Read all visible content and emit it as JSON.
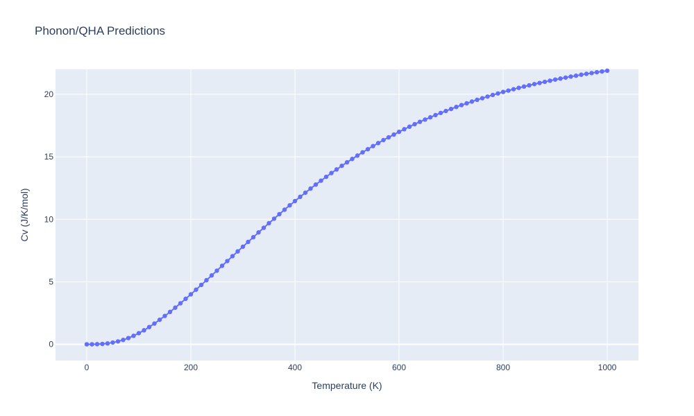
{
  "chart_data": {
    "type": "line",
    "mode": "lines+markers",
    "title": "Phonon/QHA Predictions",
    "xlabel": "Temperature (K)",
    "ylabel": "Cv (J/K/mol)",
    "xlim": [
      -60,
      1060
    ],
    "ylim": [
      -1.3,
      22
    ],
    "xticks": [
      0,
      200,
      400,
      600,
      800,
      1000
    ],
    "yticks": [
      0,
      5,
      10,
      15,
      20
    ],
    "grid": true,
    "legend": "none",
    "colors": {
      "series": "#636efa",
      "plot_bg": "#e5ecf6",
      "grid": "#ffffff",
      "text": "#2a3f5f"
    },
    "series": [
      {
        "x": [
          0,
          10,
          20,
          30,
          40,
          50,
          60,
          70,
          80,
          90,
          100,
          110,
          120,
          130,
          140,
          150,
          160,
          170,
          180,
          190,
          200,
          210,
          220,
          230,
          240,
          250,
          260,
          270,
          280,
          290,
          300,
          310,
          320,
          330,
          340,
          350,
          360,
          370,
          380,
          390,
          400,
          410,
          420,
          430,
          440,
          450,
          460,
          470,
          480,
          490,
          500,
          510,
          520,
          530,
          540,
          550,
          560,
          570,
          580,
          590,
          600,
          610,
          620,
          630,
          640,
          650,
          660,
          670,
          680,
          690,
          700,
          710,
          720,
          730,
          740,
          750,
          760,
          770,
          780,
          790,
          800,
          810,
          820,
          830,
          840,
          850,
          860,
          870,
          880,
          890,
          900,
          910,
          920,
          930,
          940,
          950,
          960,
          970,
          980,
          990,
          1000
        ],
        "y": [
          0,
          0,
          0.01,
          0.03,
          0.07,
          0.14,
          0.23,
          0.35,
          0.5,
          0.68,
          0.89,
          1.12,
          1.38,
          1.66,
          1.96,
          2.27,
          2.59,
          2.93,
          3.28,
          3.64,
          4.0,
          4.37,
          4.75,
          5.13,
          5.51,
          5.89,
          6.28,
          6.66,
          7.05,
          7.43,
          7.81,
          8.19,
          8.57,
          8.95,
          9.32,
          9.69,
          10.05,
          10.41,
          10.77,
          11.12,
          11.46,
          11.8,
          12.13,
          12.46,
          12.78,
          13.09,
          13.4,
          13.7,
          13.99,
          14.28,
          14.56,
          14.83,
          15.1,
          15.36,
          15.61,
          15.86,
          16.1,
          16.34,
          16.56,
          16.78,
          17.0,
          17.21,
          17.41,
          17.61,
          17.8,
          17.98,
          18.16,
          18.34,
          18.51,
          18.67,
          18.83,
          18.99,
          19.14,
          19.28,
          19.42,
          19.56,
          19.69,
          19.82,
          19.95,
          20.07,
          20.19,
          20.3,
          20.41,
          20.52,
          20.62,
          20.72,
          20.82,
          20.91,
          21.0,
          21.09,
          21.18,
          21.26,
          21.34,
          21.42,
          21.49,
          21.57,
          21.64,
          21.7,
          21.77,
          21.83,
          21.89
        ]
      }
    ]
  }
}
